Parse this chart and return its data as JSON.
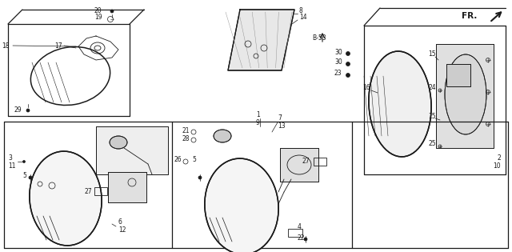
{
  "bg_color": "#ffffff",
  "line_color": "#1a1a1a",
  "fr_label": "FR.",
  "fig_width": 6.4,
  "fig_height": 3.15,
  "dpi": 100
}
